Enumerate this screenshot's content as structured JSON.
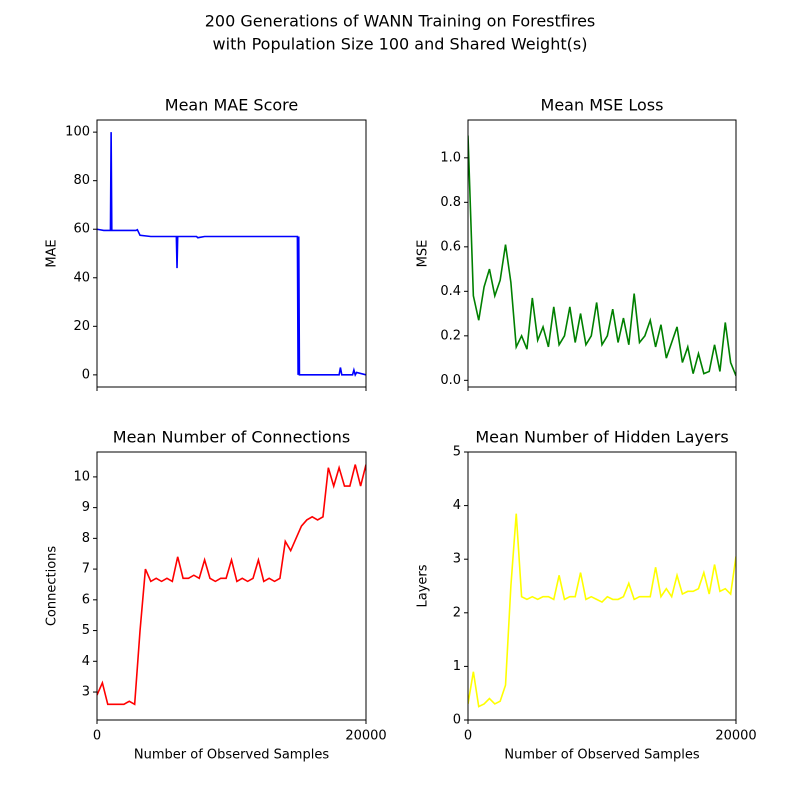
{
  "title": [
    "200 Generations of WANN Training on Forestfires",
    "with Population Size 100 and Shared Weight(s)"
  ],
  "chart_data": [
    {
      "type": "line",
      "title": "Mean MAE Score",
      "y_label": "MAE",
      "color": "#0000ff",
      "x": [
        0,
        500,
        1000,
        1050,
        1100,
        1500,
        2000,
        2900,
        3000,
        3200,
        4000,
        5000,
        5900,
        5950,
        6000,
        7000,
        7400,
        7500,
        8000,
        10000,
        12000,
        14000,
        14900,
        14950,
        15000,
        15050,
        15100,
        15200,
        16000,
        17000,
        18000,
        18100,
        18200,
        19000,
        19100,
        19200,
        19300,
        20000
      ],
      "values": [
        60,
        59.5,
        59.5,
        100,
        59.5,
        59.5,
        59.5,
        59.5,
        59.8,
        57.5,
        57,
        57,
        57,
        44,
        57,
        57,
        57,
        56.5,
        57,
        57,
        57,
        57,
        57,
        0,
        57,
        0,
        0,
        0,
        0,
        0,
        0,
        3,
        0,
        0,
        2,
        0,
        1,
        0
      ],
      "xlim": [
        0,
        20000
      ],
      "ylim": [
        -5,
        105
      ],
      "yticks": [
        0,
        20,
        40,
        60,
        80,
        100
      ]
    },
    {
      "type": "line",
      "title": "Mean MSE Loss",
      "y_label": "MSE",
      "color": "#008000",
      "x": [
        0,
        400,
        800,
        1200,
        1600,
        2000,
        2400,
        2800,
        3200,
        3600,
        4000,
        4400,
        4800,
        5200,
        5600,
        6000,
        6400,
        6800,
        7200,
        7600,
        8000,
        8400,
        8800,
        9200,
        9600,
        10000,
        10400,
        10800,
        11200,
        11600,
        12000,
        12400,
        12800,
        13200,
        13600,
        14000,
        14400,
        14800,
        15200,
        15600,
        16000,
        16400,
        16800,
        17200,
        17600,
        18000,
        18400,
        18800,
        19200,
        19600,
        20000
      ],
      "values": [
        1.1,
        0.38,
        0.27,
        0.42,
        0.5,
        0.38,
        0.45,
        0.61,
        0.44,
        0.15,
        0.2,
        0.14,
        0.37,
        0.18,
        0.24,
        0.15,
        0.33,
        0.16,
        0.2,
        0.33,
        0.17,
        0.3,
        0.16,
        0.2,
        0.35,
        0.16,
        0.2,
        0.32,
        0.17,
        0.28,
        0.16,
        0.39,
        0.17,
        0.2,
        0.27,
        0.15,
        0.25,
        0.1,
        0.17,
        0.24,
        0.08,
        0.15,
        0.03,
        0.12,
        0.03,
        0.04,
        0.16,
        0.04,
        0.26,
        0.08,
        0.02
      ],
      "xlim": [
        0,
        20000
      ],
      "ylim": [
        -0.03,
        1.17
      ],
      "yticks": [
        {
          "value": 0,
          "label": "0.0"
        },
        0.2,
        0.4,
        0.6,
        0.8,
        {
          "value": 1,
          "label": "1.0"
        }
      ]
    },
    {
      "type": "line",
      "title": "Mean Number of Connections",
      "y_label": "Connections",
      "x_label": "Number of Observed Samples",
      "color": "#ff0000",
      "x": [
        0,
        400,
        800,
        1200,
        1600,
        2000,
        2400,
        2800,
        3200,
        3600,
        4000,
        4400,
        4800,
        5200,
        5600,
        6000,
        6400,
        6800,
        7200,
        7600,
        8000,
        8400,
        8800,
        9200,
        9600,
        10000,
        10400,
        10800,
        11200,
        11600,
        12000,
        12400,
        12800,
        13200,
        13600,
        14000,
        14400,
        14800,
        15200,
        15600,
        16000,
        16400,
        16800,
        17200,
        17600,
        18000,
        18400,
        18800,
        19200,
        19600,
        20000
      ],
      "values": [
        2.9,
        3.3,
        2.6,
        2.6,
        2.6,
        2.6,
        2.7,
        2.6,
        5.0,
        7.0,
        6.6,
        6.7,
        6.6,
        6.7,
        6.6,
        7.4,
        6.7,
        6.7,
        6.8,
        6.7,
        7.3,
        6.7,
        6.6,
        6.7,
        6.7,
        7.3,
        6.6,
        6.7,
        6.6,
        6.7,
        7.3,
        6.6,
        6.7,
        6.6,
        6.7,
        7.9,
        7.6,
        8.0,
        8.4,
        8.6,
        8.7,
        8.6,
        8.7,
        10.3,
        9.7,
        10.3,
        9.7,
        9.7,
        10.4,
        9.7,
        10.4
      ],
      "xlim": [
        0,
        20000
      ],
      "xticks": [
        0,
        20000
      ],
      "ylim": [
        2.09,
        10.81
      ],
      "yticks": [
        3,
        4,
        5,
        6,
        7,
        8,
        9,
        10
      ]
    },
    {
      "type": "line",
      "title": "Mean Number of Hidden Layers",
      "y_label": "Layers",
      "x_label": "Number of Observed Samples",
      "color": "#ffff00",
      "x": [
        0,
        400,
        800,
        1200,
        1600,
        2000,
        2400,
        2800,
        3200,
        3600,
        4000,
        4400,
        4800,
        5200,
        5600,
        6000,
        6400,
        6800,
        7200,
        7600,
        8000,
        8400,
        8800,
        9200,
        9600,
        10000,
        10400,
        10800,
        11200,
        11600,
        12000,
        12400,
        12800,
        13200,
        13600,
        14000,
        14400,
        14800,
        15200,
        15600,
        16000,
        16400,
        16800,
        17200,
        17600,
        18000,
        18400,
        18800,
        19200,
        19600,
        20000
      ],
      "values": [
        0.3,
        0.9,
        0.25,
        0.3,
        0.4,
        0.3,
        0.35,
        0.65,
        2.5,
        3.85,
        2.3,
        2.25,
        2.3,
        2.25,
        2.3,
        2.3,
        2.25,
        2.7,
        2.25,
        2.3,
        2.3,
        2.75,
        2.25,
        2.3,
        2.25,
        2.2,
        2.3,
        2.25,
        2.25,
        2.3,
        2.55,
        2.25,
        2.3,
        2.3,
        2.3,
        2.85,
        2.3,
        2.45,
        2.3,
        2.7,
        2.35,
        2.4,
        2.4,
        2.45,
        2.75,
        2.35,
        2.9,
        2.4,
        2.45,
        2.35,
        3.05
      ],
      "xlim": [
        0,
        20000
      ],
      "xticks": [
        0,
        20000
      ],
      "ylim": [
        0,
        5
      ],
      "yticks": [
        0,
        1,
        2,
        3,
        4,
        5
      ]
    }
  ]
}
